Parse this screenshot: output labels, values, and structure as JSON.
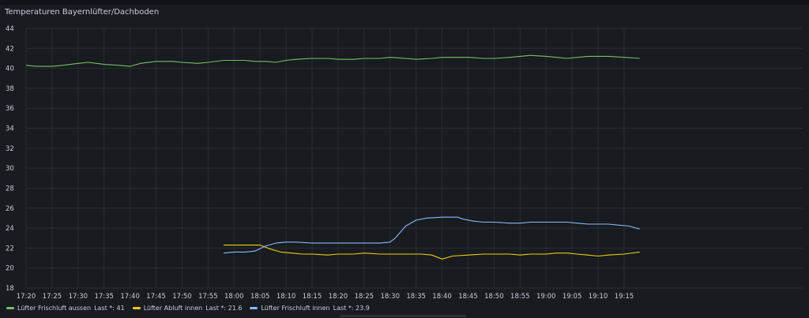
{
  "panel": {
    "title": "Temperaturen Bayernlüfter/Dachboden"
  },
  "chart_data": {
    "type": "line",
    "title": "Temperaturen Bayernlüfter/Dachboden",
    "xlabel": "",
    "ylabel": "",
    "ylim": [
      18,
      44
    ],
    "yticks": [
      18,
      20,
      22,
      24,
      26,
      28,
      30,
      32,
      34,
      36,
      38,
      40,
      42,
      44
    ],
    "xlim": [
      "17:20",
      "19:20"
    ],
    "xticks": [
      "17:20",
      "17:25",
      "17:30",
      "17:35",
      "17:40",
      "17:45",
      "17:50",
      "17:55",
      "18:00",
      "18:05",
      "18:10",
      "18:15",
      "18:20",
      "18:25",
      "18:30",
      "18:35",
      "18:40",
      "18:45",
      "18:50",
      "18:55",
      "19:00",
      "19:05",
      "19:10",
      "19:15"
    ],
    "grid": true,
    "legend_position": "bottom-left",
    "series": [
      {
        "name": "Lüfter Frischluft aussen",
        "color": "#73bf69",
        "legend": "Last *: 41",
        "x": [
          "17:20",
          "17:22",
          "17:25",
          "17:27",
          "17:30",
          "17:32",
          "17:35",
          "17:38",
          "17:40",
          "17:42",
          "17:45",
          "17:48",
          "17:50",
          "17:53",
          "17:55",
          "17:58",
          "18:00",
          "18:02",
          "18:04",
          "18:06",
          "18:08",
          "18:10",
          "18:12",
          "18:15",
          "18:18",
          "18:20",
          "18:23",
          "18:25",
          "18:28",
          "18:30",
          "18:33",
          "18:35",
          "18:38",
          "18:40",
          "18:43",
          "18:45",
          "18:48",
          "18:50",
          "18:53",
          "18:55",
          "18:57",
          "19:00",
          "19:02",
          "19:04",
          "19:06",
          "19:08",
          "19:10",
          "19:12",
          "19:15",
          "19:18"
        ],
        "values": [
          40.3,
          40.2,
          40.2,
          40.3,
          40.5,
          40.6,
          40.4,
          40.3,
          40.2,
          40.5,
          40.7,
          40.7,
          40.6,
          40.5,
          40.6,
          40.8,
          40.8,
          40.8,
          40.7,
          40.7,
          40.6,
          40.8,
          40.9,
          41.0,
          41.0,
          40.9,
          40.9,
          41.0,
          41.0,
          41.1,
          41.0,
          40.9,
          41.0,
          41.1,
          41.1,
          41.1,
          41.0,
          41.0,
          41.1,
          41.2,
          41.3,
          41.2,
          41.1,
          41.0,
          41.1,
          41.2,
          41.2,
          41.2,
          41.1,
          41.0
        ]
      },
      {
        "name": "Lüfter Abluft innen",
        "color": "#f2cc0c",
        "legend": "Last *: 21.6",
        "x": [
          "17:58",
          "18:00",
          "18:02",
          "18:05",
          "18:07",
          "18:09",
          "18:11",
          "18:13",
          "18:15",
          "18:18",
          "18:20",
          "18:23",
          "18:25",
          "18:28",
          "18:30",
          "18:32",
          "18:34",
          "18:36",
          "18:38",
          "18:40",
          "18:42",
          "18:45",
          "18:48",
          "18:50",
          "18:53",
          "18:55",
          "18:57",
          "19:00",
          "19:02",
          "19:04",
          "19:06",
          "19:08",
          "19:10",
          "19:12",
          "19:15",
          "19:18"
        ],
        "values": [
          22.3,
          22.3,
          22.3,
          22.3,
          21.9,
          21.6,
          21.5,
          21.4,
          21.4,
          21.3,
          21.4,
          21.4,
          21.5,
          21.4,
          21.4,
          21.4,
          21.4,
          21.4,
          21.3,
          20.9,
          21.2,
          21.3,
          21.4,
          21.4,
          21.4,
          21.3,
          21.4,
          21.4,
          21.5,
          21.5,
          21.4,
          21.3,
          21.2,
          21.3,
          21.4,
          21.6
        ]
      },
      {
        "name": "Lüfter Frischluft innen",
        "color": "#8ab8ff",
        "legend": "Last *: 23.9",
        "x": [
          "17:58",
          "18:00",
          "18:02",
          "18:04",
          "18:06",
          "18:08",
          "18:10",
          "18:12",
          "18:15",
          "18:18",
          "18:20",
          "18:23",
          "18:25",
          "18:28",
          "18:30",
          "18:31",
          "18:32",
          "18:33",
          "18:35",
          "18:37",
          "18:40",
          "18:43",
          "18:44",
          "18:46",
          "18:48",
          "18:50",
          "18:53",
          "18:55",
          "18:57",
          "19:00",
          "19:02",
          "19:04",
          "19:06",
          "19:08",
          "19:10",
          "19:12",
          "19:14",
          "19:16",
          "19:18"
        ],
        "values": [
          21.5,
          21.6,
          21.6,
          21.7,
          22.2,
          22.5,
          22.6,
          22.6,
          22.5,
          22.5,
          22.5,
          22.5,
          22.5,
          22.5,
          22.6,
          23.0,
          23.6,
          24.2,
          24.8,
          25.0,
          25.1,
          25.1,
          24.9,
          24.7,
          24.6,
          24.6,
          24.5,
          24.5,
          24.6,
          24.6,
          24.6,
          24.6,
          24.5,
          24.4,
          24.4,
          24.4,
          24.3,
          24.2,
          23.9
        ]
      }
    ]
  }
}
